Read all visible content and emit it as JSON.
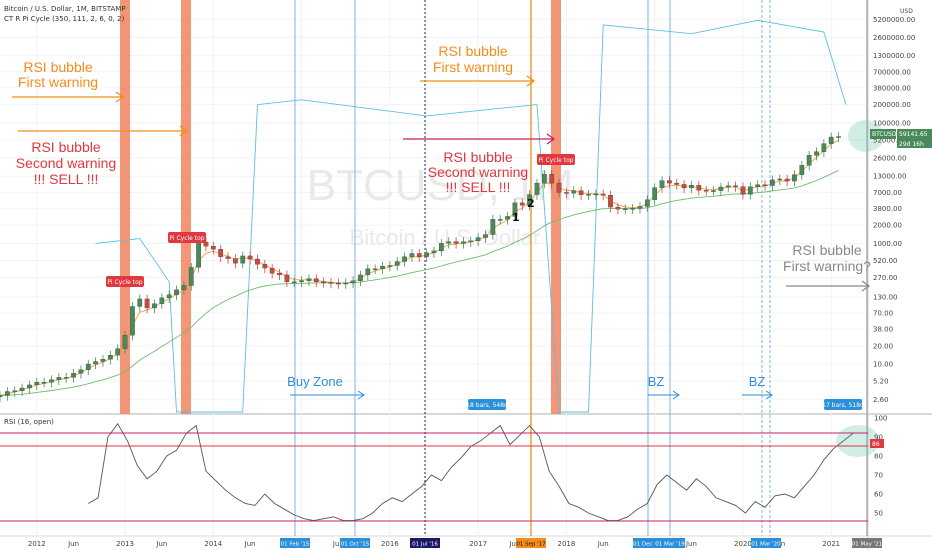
{
  "header": {
    "title": "Bitcoin / U.S. Dollar, 1M, BITSTAMP",
    "indicator": "CT R Pi Cycle (350, 111, 2, 6, 0, 2)"
  },
  "watermark": {
    "symbol": "BTCUSD, 1M",
    "name": "Bitcoin / U.S. Dollar"
  },
  "colors": {
    "orange": "#f28d1a",
    "red": "#e0383e",
    "magenta": "#cc1f6b",
    "blue": "#2b8fd9",
    "bubble_band": "#f07a55",
    "price_up": "#4a8a5a",
    "price_down": "#c94a3e",
    "upper_band": "#5bc0de",
    "ma_green": "#6cbf6c",
    "rsi_line": "#555555"
  },
  "annotations": {
    "a1_line1": "RSI bubble",
    "a1_line2": "First warning",
    "a2_line1": "RSI bubble",
    "a2_line2": "Second warning",
    "a2_line3": "!!! SELL !!!",
    "a3_line1": "RSI bubble",
    "a3_line2": "First warning",
    "a4_line1": "RSI bubble",
    "a4_line2": "Second warning",
    "a4_line3": "!!! SELL !!!",
    "a5_line1": "RSI bubble",
    "a5_line2": "First warning?",
    "buy_zone": "Buy Zone",
    "bz1": "BZ",
    "bz2": "BZ",
    "pi_top_label": "Pi Cycle top",
    "wave1": "1",
    "wave2": "2",
    "bars1": "18 bars, 548d",
    "bars2": "17 bars, 518d"
  },
  "price_axis": {
    "label_usd": "USD",
    "ticks": [
      "5200000.00",
      "2600000.00",
      "1300000.00",
      "700000.00",
      "380000.00",
      "200000.00",
      "100000.00",
      "52000.00",
      "26000.00",
      "13000.00",
      "7000.00",
      "3800.00",
      "2000.00",
      "1000.00",
      "520.00",
      "270.00",
      "130.00",
      "70.00",
      "38.00",
      "20.00",
      "10.00",
      "5.20",
      "2.60"
    ],
    "last_symbol": "BTCUSD",
    "last_price": "59141.65",
    "countdown": "29d 16h"
  },
  "rsi_panel": {
    "label": "RSI (16, open)",
    "ticks": [
      "100",
      "90",
      "80",
      "70",
      "60",
      "50"
    ],
    "current": "86",
    "upper_level": 92,
    "lower_level": 47,
    "values": [
      55,
      58,
      90,
      97,
      88,
      75,
      68,
      72,
      80,
      83,
      92,
      96,
      72,
      67,
      62,
      58,
      55,
      54,
      60,
      55,
      52,
      49,
      47,
      46,
      47,
      48,
      46,
      46,
      47,
      50,
      55,
      58,
      56,
      60,
      64,
      70,
      67,
      74,
      79,
      85,
      88,
      92,
      96,
      86,
      91,
      96,
      90,
      72,
      64,
      55,
      53,
      50,
      48,
      46,
      46,
      48,
      52,
      55,
      65,
      70,
      66,
      62,
      68,
      64,
      58,
      56,
      54,
      50,
      56,
      53,
      59,
      60,
      58,
      64,
      70,
      78,
      84,
      88,
      92
    ]
  },
  "time_axis": {
    "labels": [
      "2012",
      "Jun",
      "2013",
      "Jun",
      "2014",
      "Jun",
      "2015",
      "Jun",
      "2016",
      "Jun",
      "2017",
      "Jun",
      "2018",
      "Jun",
      "2019",
      "Jun",
      "2020",
      "Jun",
      "2021"
    ],
    "markers": [
      "01 Feb '15",
      "01 Oct '15",
      "01 Jul '16",
      "01 Sep '17",
      "01 Dec '18",
      "01 Mar '19",
      "01 Mar '20",
      "01 May '21"
    ]
  },
  "chart_data": {
    "type": "candlestick",
    "title": "Bitcoin / U.S. Dollar, 1M, BITSTAMP",
    "yscale": "log",
    "ylim": [
      1.6,
      8000000
    ],
    "x_start": "2011-08",
    "x_end": "2021-06",
    "series": [
      {
        "name": "BTCUSD",
        "period": "2011-08",
        "ohlc_close": [
          3,
          3.5,
          3.6,
          4,
          4.5,
          5,
          5,
          5.5,
          6,
          6,
          7,
          8,
          10,
          11,
          12,
          14,
          18,
          30,
          90,
          120,
          85,
          100,
          125,
          140,
          170,
          200,
          400,
          1050,
          900,
          800,
          600,
          560,
          470,
          620,
          550,
          450,
          390,
          320,
          300,
          230,
          230,
          240,
          260,
          230,
          225,
          220,
          215,
          220,
          240,
          300,
          380,
          380,
          420,
          430,
          500,
          600,
          680,
          600,
          700,
          750,
          1000,
          1070,
          1000,
          1070,
          1100,
          1250,
          1400,
          2500,
          2500,
          2800,
          4700,
          4300,
          6450,
          10000,
          14000,
          10000,
          7000,
          6800,
          7500,
          6400,
          6500,
          6600,
          6300,
          4000,
          3700,
          3750,
          3800,
          4100,
          5300,
          8400,
          11000,
          10000,
          9500,
          8300,
          9200,
          7600,
          7500,
          7500,
          8600,
          9000,
          8700,
          6500,
          8700,
          9400,
          9100,
          11300,
          11700,
          10800,
          13800,
          19700,
          29000,
          33000,
          45000,
          58000,
          59141
        ]
      },
      {
        "name": "Upper band",
        "points": [
          [
            "2012-09",
            1000
          ],
          [
            "2013-03",
            1200
          ],
          [
            "2013-07",
            230
          ],
          [
            "2013-08",
            0
          ],
          [
            "2014-05",
            0
          ],
          [
            "2014-07",
            200000
          ],
          [
            "2015-01",
            240000
          ],
          [
            "2016-06",
            130000
          ],
          [
            "2017-09",
            200000
          ],
          [
            "2017-12",
            0
          ],
          [
            "2018-04",
            0
          ],
          [
            "2018-06",
            4200000
          ],
          [
            "2019-06",
            3000000
          ],
          [
            "2020-03",
            5000000
          ],
          [
            "2020-12",
            3200000
          ],
          [
            "2021-03",
            200000
          ]
        ]
      },
      {
        "name": "RSI",
        "levels": [
          92,
          47
        ]
      }
    ]
  }
}
